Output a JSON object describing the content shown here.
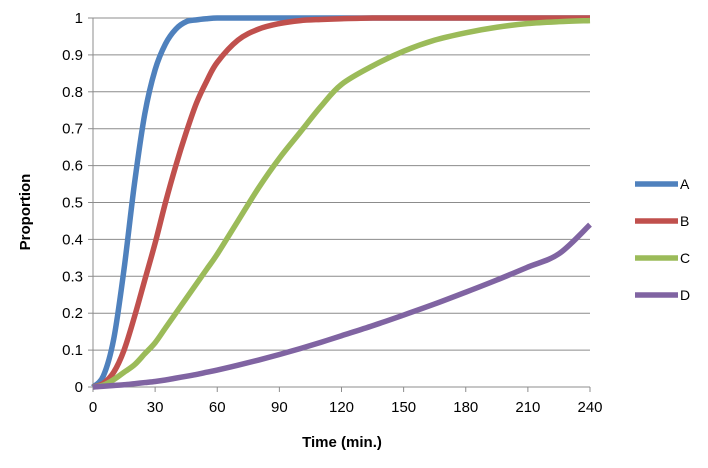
{
  "chart_data": {
    "type": "line",
    "title": "",
    "xlabel": "Time (min.)",
    "ylabel": "Proportion",
    "xlim": [
      0,
      240
    ],
    "ylim": [
      0,
      1
    ],
    "xticks": [
      "0",
      "30",
      "60",
      "90",
      "120",
      "150",
      "180",
      "210",
      "240"
    ],
    "yticks": [
      "0",
      "0.1",
      "0.2",
      "0.3",
      "0.4",
      "0.5",
      "0.6",
      "0.7",
      "0.8",
      "0.9",
      "1"
    ],
    "grid": "horizontal",
    "legend_position": "right",
    "x": [
      0,
      5,
      10,
      15,
      20,
      25,
      30,
      35,
      40,
      45,
      50,
      55,
      60,
      70,
      80,
      90,
      100,
      110,
      120,
      135,
      150,
      165,
      180,
      195,
      210,
      225,
      240
    ],
    "series": [
      {
        "name": "A",
        "color": "#4F81BD",
        "values": [
          0,
          0.03,
          0.13,
          0.32,
          0.55,
          0.74,
          0.86,
          0.93,
          0.97,
          0.99,
          0.995,
          0.998,
          1,
          1,
          1,
          1,
          1,
          1,
          1,
          1,
          1,
          1,
          1,
          1,
          1,
          1,
          1
        ]
      },
      {
        "name": "B",
        "color": "#C0504D",
        "values": [
          0,
          0.01,
          0.04,
          0.1,
          0.19,
          0.29,
          0.39,
          0.5,
          0.6,
          0.69,
          0.77,
          0.83,
          0.88,
          0.94,
          0.97,
          0.985,
          0.993,
          0.996,
          0.998,
          1,
          1,
          1,
          1,
          1,
          1,
          1,
          1
        ]
      },
      {
        "name": "C",
        "color": "#9BBB59",
        "values": [
          0,
          0.005,
          0.02,
          0.04,
          0.06,
          0.09,
          0.12,
          0.16,
          0.2,
          0.24,
          0.28,
          0.32,
          0.36,
          0.45,
          0.54,
          0.62,
          0.69,
          0.76,
          0.82,
          0.87,
          0.91,
          0.94,
          0.96,
          0.975,
          0.985,
          0.99,
          0.993
        ]
      },
      {
        "name": "D",
        "color": "#8064A2",
        "values": [
          0,
          0.002,
          0.004,
          0.006,
          0.009,
          0.012,
          0.015,
          0.019,
          0.024,
          0.029,
          0.034,
          0.04,
          0.046,
          0.059,
          0.073,
          0.088,
          0.104,
          0.121,
          0.139,
          0.166,
          0.195,
          0.225,
          0.257,
          0.29,
          0.325,
          0.361,
          0.44
        ]
      }
    ]
  }
}
